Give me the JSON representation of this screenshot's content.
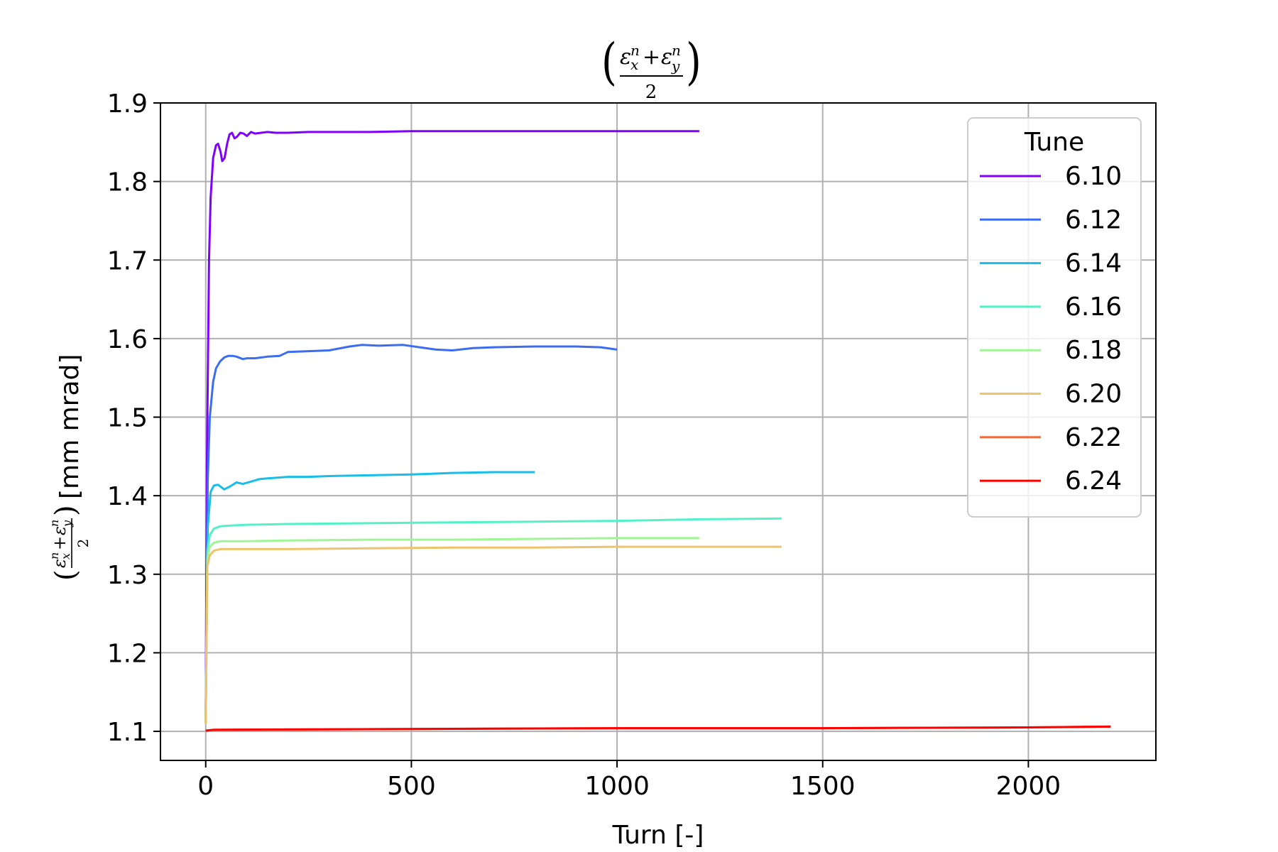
{
  "chart_data": {
    "type": "line",
    "title": "(εxn + εyn)/2",
    "xlabel": "Turn [-]",
    "ylabel": "(εxn + εyn)/2 [mm mrad]",
    "ylabel_unit": "[mm mrad]",
    "xlim": [
      -110,
      2310
    ],
    "ylim": [
      1.063,
      1.9
    ],
    "xticks": [
      0,
      500,
      1000,
      1500,
      2000
    ],
    "yticks": [
      1.1,
      1.2,
      1.3,
      1.4,
      1.5,
      1.6,
      1.7,
      1.8,
      1.9
    ],
    "xtick_labels": [
      "0",
      "500",
      "1000",
      "1500",
      "2000"
    ],
    "ytick_labels": [
      "1.1",
      "1.2",
      "1.3",
      "1.4",
      "1.5",
      "1.6",
      "1.7",
      "1.8",
      "1.9"
    ],
    "grid": true,
    "legend": {
      "title": "Tune",
      "placement": "top-right"
    },
    "series": [
      {
        "name": "6.10",
        "color": "#7f00ff",
        "x": [
          0,
          3,
          8,
          12,
          18,
          25,
          30,
          36,
          40,
          46,
          52,
          58,
          64,
          70,
          76,
          84,
          92,
          100,
          110,
          120,
          135,
          150,
          170,
          200,
          250,
          300,
          400,
          500,
          600,
          700,
          800,
          900,
          1000,
          1100,
          1200
        ],
        "y": [
          1.11,
          1.45,
          1.7,
          1.78,
          1.83,
          1.846,
          1.848,
          1.838,
          1.826,
          1.83,
          1.848,
          1.86,
          1.862,
          1.855,
          1.857,
          1.862,
          1.861,
          1.858,
          1.863,
          1.861,
          1.862,
          1.863,
          1.862,
          1.862,
          1.863,
          1.863,
          1.863,
          1.864,
          1.864,
          1.864,
          1.864,
          1.864,
          1.864,
          1.864,
          1.864
        ]
      },
      {
        "name": "6.12",
        "color": "#3c6df0",
        "x": [
          0,
          5,
          10,
          18,
          25,
          35,
          45,
          55,
          65,
          75,
          90,
          100,
          120,
          150,
          180,
          200,
          250,
          300,
          350,
          380,
          420,
          480,
          520,
          560,
          600,
          650,
          700,
          800,
          900,
          960,
          1000
        ],
        "y": [
          1.11,
          1.42,
          1.5,
          1.545,
          1.562,
          1.571,
          1.576,
          1.578,
          1.578,
          1.577,
          1.574,
          1.575,
          1.575,
          1.577,
          1.578,
          1.583,
          1.584,
          1.585,
          1.59,
          1.592,
          1.591,
          1.592,
          1.589,
          1.586,
          1.585,
          1.588,
          1.589,
          1.59,
          1.59,
          1.589,
          1.586
        ]
      },
      {
        "name": "6.14",
        "color": "#18bde9",
        "x": [
          0,
          5,
          12,
          20,
          30,
          45,
          60,
          75,
          90,
          110,
          130,
          150,
          200,
          250,
          300,
          400,
          500,
          550,
          600,
          700,
          800
        ],
        "y": [
          1.11,
          1.36,
          1.405,
          1.413,
          1.414,
          1.408,
          1.412,
          1.417,
          1.415,
          1.418,
          1.421,
          1.422,
          1.424,
          1.424,
          1.425,
          1.426,
          1.427,
          1.428,
          1.429,
          1.43,
          1.43
        ]
      },
      {
        "name": "6.16",
        "color": "#53f1c8",
        "x": [
          0,
          4,
          10,
          20,
          35,
          60,
          100,
          200,
          400,
          600,
          800,
          1000,
          1200,
          1400
        ],
        "y": [
          1.11,
          1.33,
          1.35,
          1.358,
          1.361,
          1.362,
          1.363,
          1.364,
          1.365,
          1.366,
          1.367,
          1.368,
          1.37,
          1.371
        ]
      },
      {
        "name": "6.18",
        "color": "#a0f596",
        "x": [
          0,
          4,
          10,
          20,
          35,
          60,
          100,
          200,
          400,
          600,
          800,
          1000,
          1200
        ],
        "y": [
          1.11,
          1.32,
          1.335,
          1.34,
          1.342,
          1.342,
          1.342,
          1.343,
          1.344,
          1.344,
          1.345,
          1.346,
          1.346
        ]
      },
      {
        "name": "6.20",
        "color": "#eec36c",
        "x": [
          0,
          4,
          10,
          20,
          35,
          60,
          100,
          200,
          400,
          600,
          800,
          1000,
          1200,
          1400
        ],
        "y": [
          1.11,
          1.31,
          1.324,
          1.33,
          1.332,
          1.332,
          1.332,
          1.332,
          1.333,
          1.334,
          1.334,
          1.335,
          1.335,
          1.335
        ]
      },
      {
        "name": "6.22",
        "color": "#f36b3d",
        "x": [
          0,
          20,
          500,
          1000,
          1500,
          2000,
          2200
        ],
        "y": [
          1.101,
          1.102,
          1.103,
          1.104,
          1.104,
          1.105,
          1.106
        ]
      },
      {
        "name": "6.24",
        "color": "#ff0000",
        "x": [
          0,
          20,
          500,
          1000,
          1500,
          2000,
          2200
        ],
        "y": [
          1.101,
          1.102,
          1.103,
          1.104,
          1.104,
          1.105,
          1.106
        ]
      }
    ]
  }
}
